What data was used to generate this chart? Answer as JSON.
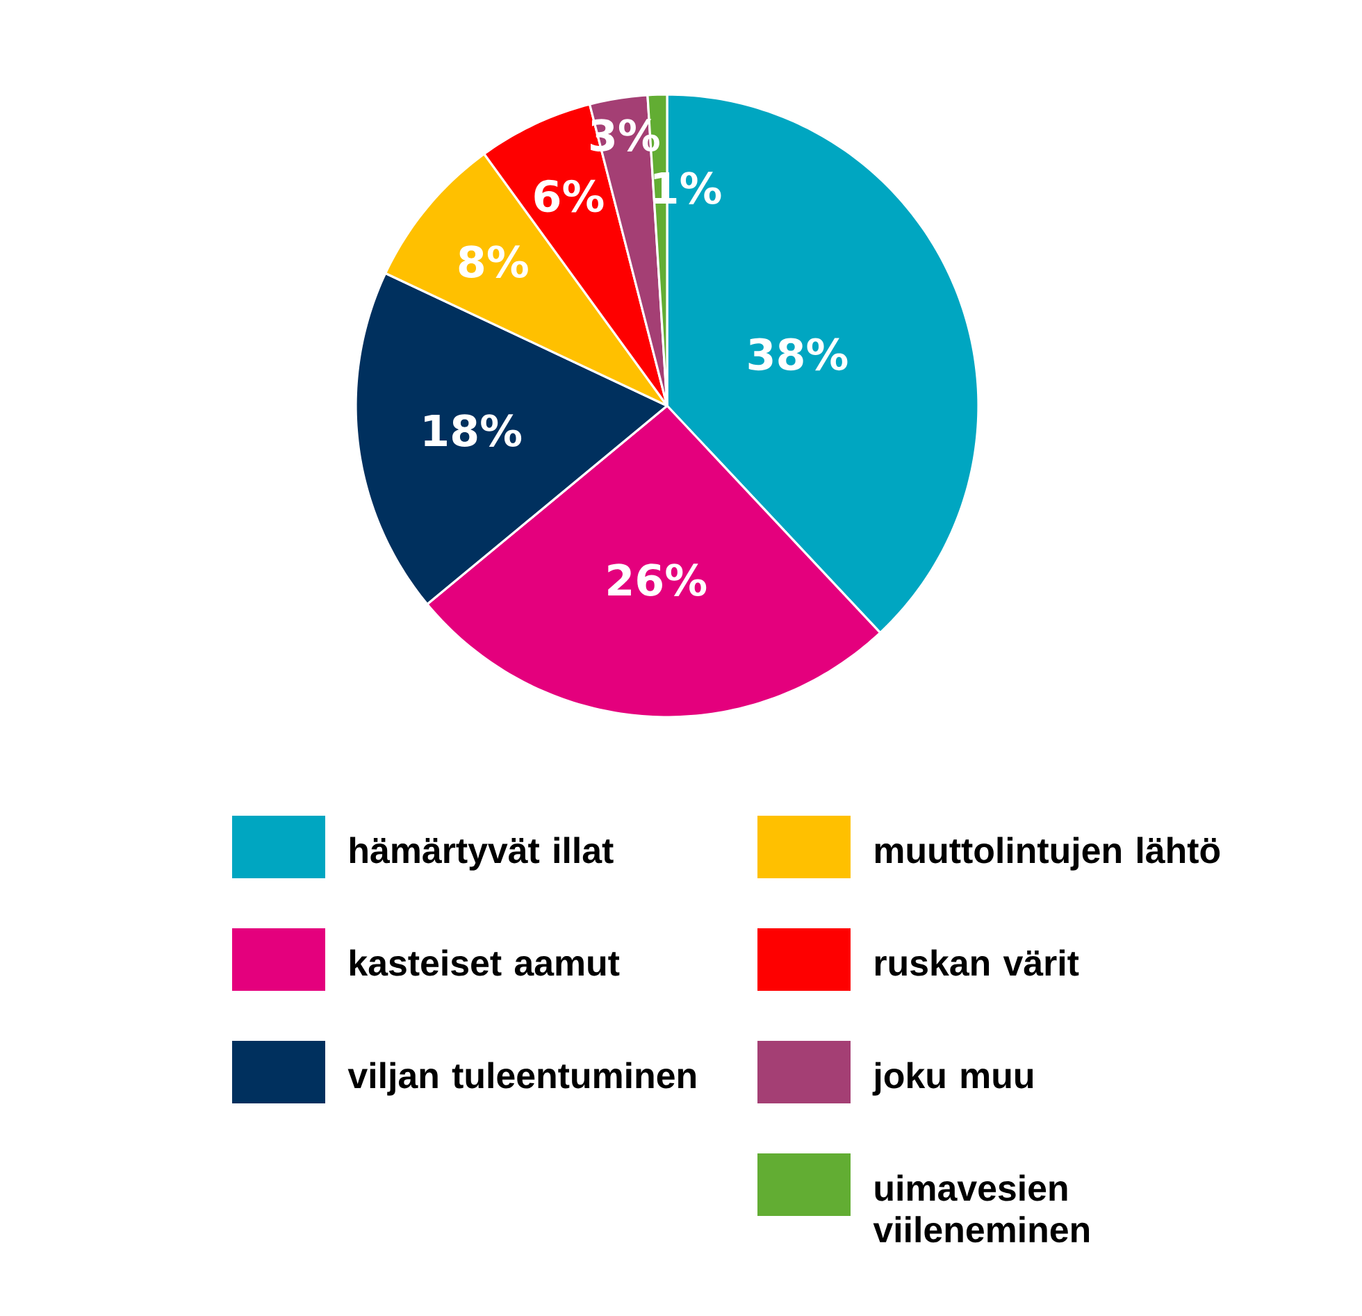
{
  "chart_data": {
    "type": "pie",
    "categories": [
      "hämärtyvät illat",
      "kasteiset aamut",
      "viljan tuleentuminen",
      "muuttolintujen lähtö",
      "ruskan värit",
      "joku muu",
      "uimavesien viileneminen"
    ],
    "values": [
      38,
      26,
      18,
      8,
      6,
      3,
      1
    ],
    "colors": [
      "#00a6c1",
      "#e4007d",
      "#00305e",
      "#ffc000",
      "#fe0000",
      "#a43f74",
      "#62ad33"
    ],
    "value_labels": [
      "38%",
      "26%",
      "18%",
      "8%",
      "6%",
      "3%",
      "1%"
    ],
    "legend": "bottom"
  }
}
